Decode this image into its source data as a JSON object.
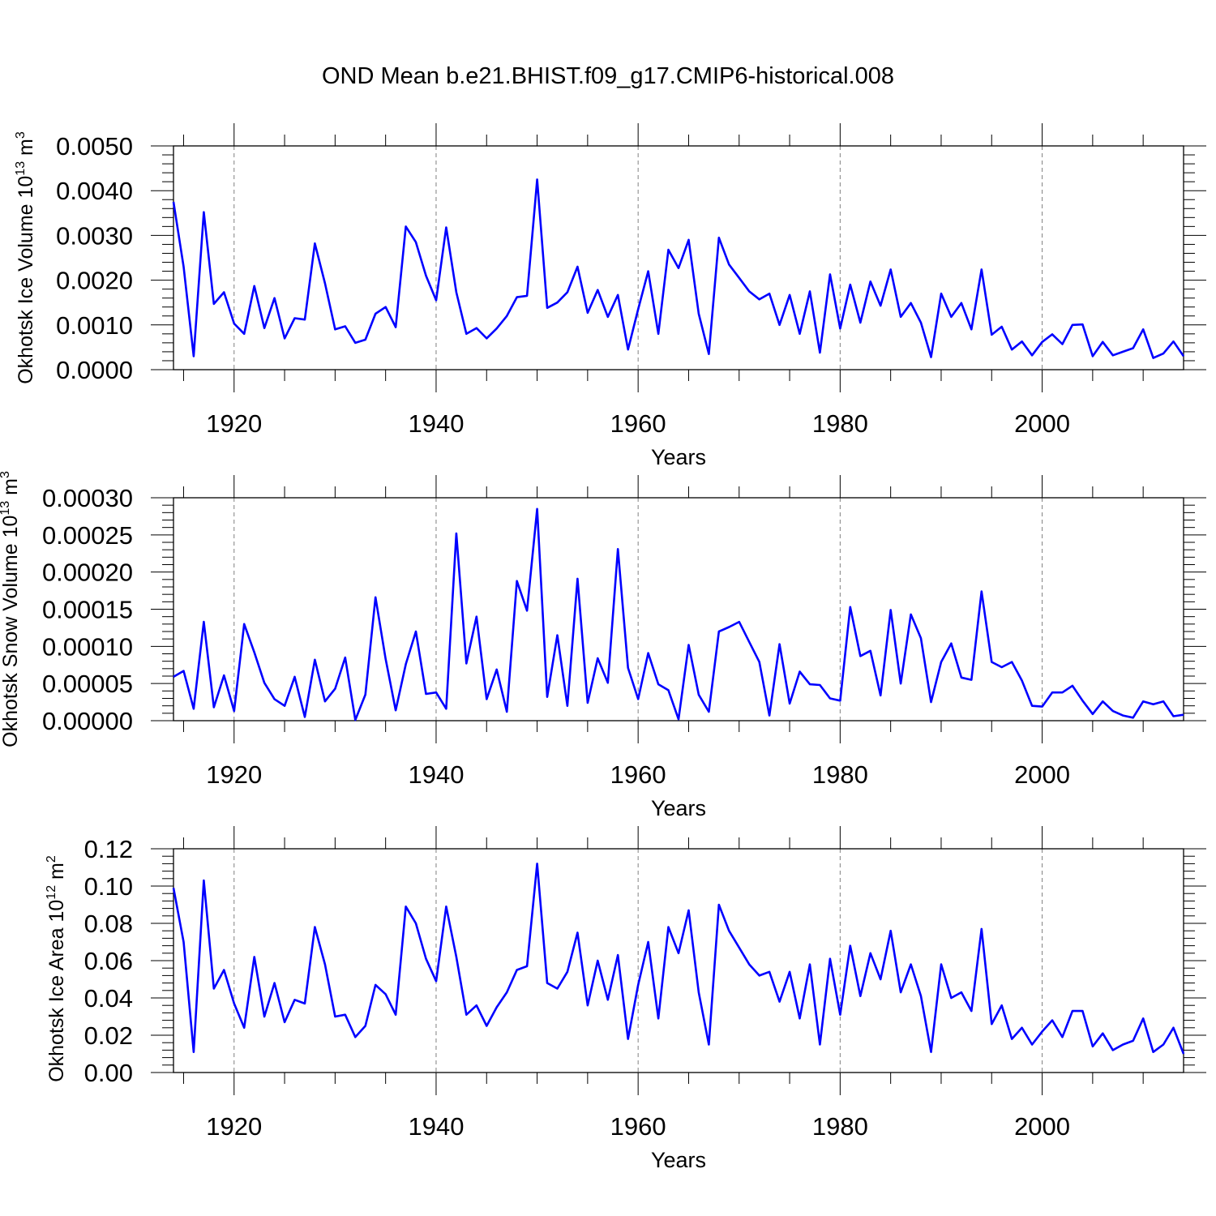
{
  "title": "OND Mean b.e21.BHIST.f09_g17.CMIP6-historical.008",
  "colors": {
    "line": "#0000ff",
    "axis": "#000000",
    "grid": "#808080"
  },
  "chart_data": [
    {
      "type": "line",
      "name": "ice-volume",
      "ylabel_main": "Okhotsk Ice Volume 10",
      "ylabel_exp": "13",
      "ylabel_unit": " m",
      "ylabel_unit_exp": "3",
      "xlabel": "Years",
      "xlim": [
        1914,
        2014
      ],
      "ylim": [
        0.0,
        0.005
      ],
      "xticks": [
        1920,
        1940,
        1960,
        1980,
        2000
      ],
      "xtick_labels": [
        "1920",
        "1940",
        "1960",
        "1980",
        "2000"
      ],
      "yticks": [
        0.0,
        0.001,
        0.002,
        0.003,
        0.004,
        0.005
      ],
      "ytick_labels": [
        "0.0000",
        "0.0010",
        "0.0020",
        "0.0030",
        "0.0040",
        "0.0050"
      ],
      "grid": "vertical-dashed",
      "x_start": 1914,
      "values": [
        0.00375,
        0.0023,
        0.0003,
        0.00352,
        0.00147,
        0.00173,
        0.00103,
        0.0008,
        0.00187,
        0.00093,
        0.0016,
        0.0007,
        0.00115,
        0.00112,
        0.00282,
        0.00193,
        0.0009,
        0.00097,
        0.0006,
        0.00067,
        0.00125,
        0.0014,
        0.00095,
        0.0032,
        0.00285,
        0.0021,
        0.00155,
        0.00318,
        0.00173,
        0.0008,
        0.00093,
        0.0007,
        0.00092,
        0.0012,
        0.00162,
        0.00165,
        0.00425,
        0.00138,
        0.0015,
        0.00173,
        0.0023,
        0.00127,
        0.00178,
        0.00118,
        0.00167,
        0.00045,
        0.00135,
        0.0022,
        0.0008,
        0.00268,
        0.00227,
        0.0029,
        0.00125,
        0.00035,
        0.00295,
        0.00235,
        0.00205,
        0.00175,
        0.00157,
        0.0017,
        0.001,
        0.00167,
        0.0008,
        0.00175,
        0.00038,
        0.00213,
        0.00092,
        0.0019,
        0.00105,
        0.00197,
        0.00143,
        0.00224,
        0.00118,
        0.00149,
        0.00105,
        0.00028,
        0.0017,
        0.00118,
        0.00149,
        0.0009,
        0.00224,
        0.00078,
        0.00096,
        0.00045,
        0.00063,
        0.00032,
        0.00062,
        0.00079,
        0.00057,
        0.001,
        0.00101,
        0.0003,
        0.00062,
        0.00032,
        0.0004,
        0.00048,
        0.0009,
        0.00026,
        0.00036,
        0.00063,
        0.0003
      ]
    },
    {
      "type": "line",
      "name": "snow-volume",
      "ylabel_main": "Okhotsk Snow Volume 10",
      "ylabel_exp": "13",
      "ylabel_unit": " m",
      "ylabel_unit_exp": "3",
      "xlabel": "Years",
      "xlim": [
        1914,
        2014
      ],
      "ylim": [
        0.0,
        0.0003
      ],
      "xticks": [
        1920,
        1940,
        1960,
        1980,
        2000
      ],
      "xtick_labels": [
        "1920",
        "1940",
        "1960",
        "1980",
        "2000"
      ],
      "yticks": [
        0.0,
        5e-05,
        0.0001,
        0.00015,
        0.0002,
        0.00025,
        0.0003
      ],
      "ytick_labels": [
        "0.00000",
        "0.00005",
        "0.00010",
        "0.00015",
        "0.00020",
        "0.00025",
        "0.00030"
      ],
      "grid": "vertical-dashed",
      "x_start": 1914,
      "values": [
        5.9e-05,
        6.7e-05,
        1.6e-05,
        0.000133,
        1.8e-05,
        6.1e-05,
        1.3e-05,
        0.00013,
        9.2e-05,
        5.1e-05,
        2.9e-05,
        2e-05,
        5.9e-05,
        5e-06,
        8.2e-05,
        2.6e-05,
        4.3e-05,
        8.5e-05,
        1e-06,
        3.5e-05,
        0.000166,
        8.3e-05,
        1.4e-05,
        7.6e-05,
        0.00012,
        3.6e-05,
        3.8e-05,
        1.6e-05,
        0.000252,
        7.7e-05,
        0.00014,
        2.9e-05,
        6.9e-05,
        1.2e-05,
        0.000188,
        0.000148,
        0.000285,
        3.2e-05,
        0.000115,
        2e-05,
        0.000191,
        2.4e-05,
        8.4e-05,
        5.1e-05,
        0.000231,
        7.1e-05,
        2.9e-05,
        9.1e-05,
        4.9e-05,
        4.1e-05,
        2e-06,
        0.000102,
        3.5e-05,
        1.2e-05,
        0.00012,
        0.000126,
        0.000133,
        0.000106,
        7.9e-05,
        7e-06,
        0.000103,
        2.3e-05,
        6.6e-05,
        4.9e-05,
        4.8e-05,
        3e-05,
        2.7e-05,
        0.000153,
        8.7e-05,
        9.4e-05,
        3.4e-05,
        0.000149,
        5e-05,
        0.000143,
        0.000111,
        2.5e-05,
        7.9e-05,
        0.000104,
        5.8e-05,
        5.5e-05,
        0.000174,
        7.9e-05,
        7.2e-05,
        7.9e-05,
        5.4e-05,
        2e-05,
        1.9e-05,
        3.8e-05,
        3.8e-05,
        4.7e-05,
        2.7e-05,
        9e-06,
        2.6e-05,
        1.3e-05,
        7e-06,
        4e-06,
        2.6e-05,
        2.2e-05,
        2.6e-05,
        6e-06,
        8e-06
      ]
    },
    {
      "type": "line",
      "name": "ice-area",
      "ylabel_main": "Okhotsk Ice Area 10",
      "ylabel_exp": "12",
      "ylabel_unit": " m",
      "ylabel_unit_exp": "2",
      "xlabel": "Years",
      "xlim": [
        1914,
        2014
      ],
      "ylim": [
        0.0,
        0.12
      ],
      "xticks": [
        1920,
        1940,
        1960,
        1980,
        2000
      ],
      "xtick_labels": [
        "1920",
        "1940",
        "1960",
        "1980",
        "2000"
      ],
      "yticks": [
        0.0,
        0.02,
        0.04,
        0.06,
        0.08,
        0.1,
        0.12
      ],
      "ytick_labels": [
        "0.00",
        "0.02",
        "0.04",
        "0.06",
        "0.08",
        "0.10",
        "0.12"
      ],
      "grid": "vertical-dashed",
      "x_start": 1914,
      "values": [
        0.099,
        0.07,
        0.011,
        0.103,
        0.045,
        0.055,
        0.037,
        0.024,
        0.062,
        0.03,
        0.048,
        0.027,
        0.039,
        0.037,
        0.078,
        0.058,
        0.03,
        0.031,
        0.019,
        0.025,
        0.047,
        0.042,
        0.031,
        0.089,
        0.08,
        0.061,
        0.049,
        0.089,
        0.062,
        0.031,
        0.036,
        0.025,
        0.035,
        0.043,
        0.055,
        0.057,
        0.112,
        0.048,
        0.045,
        0.054,
        0.075,
        0.036,
        0.06,
        0.039,
        0.063,
        0.018,
        0.047,
        0.07,
        0.029,
        0.078,
        0.064,
        0.087,
        0.043,
        0.015,
        0.09,
        0.076,
        0.067,
        0.058,
        0.052,
        0.054,
        0.038,
        0.054,
        0.029,
        0.058,
        0.015,
        0.061,
        0.031,
        0.068,
        0.041,
        0.064,
        0.05,
        0.076,
        0.043,
        0.058,
        0.041,
        0.011,
        0.058,
        0.04,
        0.043,
        0.033,
        0.077,
        0.026,
        0.036,
        0.018,
        0.024,
        0.015,
        0.022,
        0.028,
        0.019,
        0.033,
        0.033,
        0.014,
        0.021,
        0.012,
        0.015,
        0.017,
        0.029,
        0.011,
        0.015,
        0.024,
        0.01
      ]
    }
  ]
}
